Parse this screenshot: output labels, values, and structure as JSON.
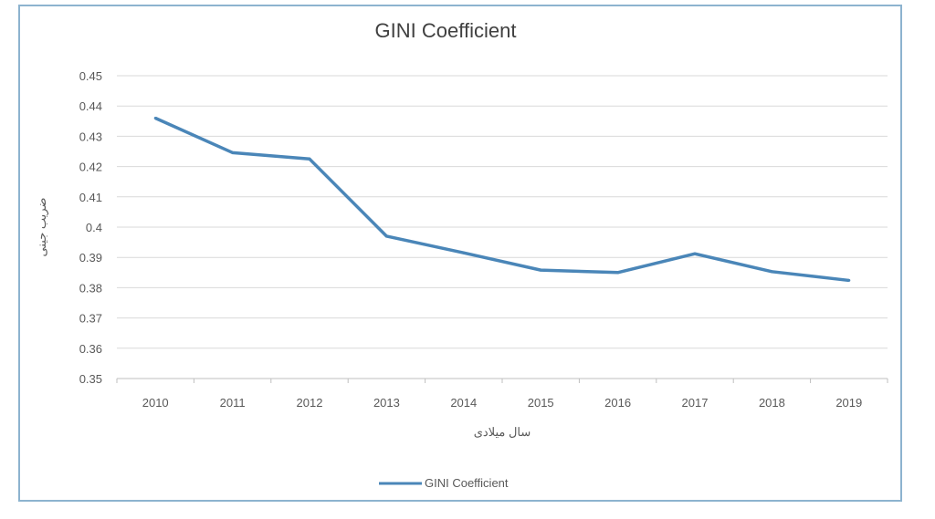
{
  "chart_data": {
    "type": "line",
    "title": "GINI Coefficient",
    "xlabel": "سال میلادی",
    "ylabel": "ضریب جینی",
    "categories": [
      "2010",
      "2011",
      "2012",
      "2013",
      "2014",
      "2015",
      "2016",
      "2017",
      "2018",
      "2019"
    ],
    "series": [
      {
        "name": "GINI Coefficient",
        "color": "#4a86b8",
        "values": [
          0.436,
          0.4246,
          0.4225,
          0.397,
          0.3915,
          0.3858,
          0.385,
          0.3912,
          0.3853,
          0.3824
        ]
      }
    ],
    "ylim": [
      0.35,
      0.45
    ],
    "yticks": [
      "0.35",
      "0.36",
      "0.37",
      "0.38",
      "0.39",
      "0.4",
      "0.41",
      "0.42",
      "0.43",
      "0.44",
      "0.45"
    ],
    "grid": true,
    "legend": "bottom"
  }
}
